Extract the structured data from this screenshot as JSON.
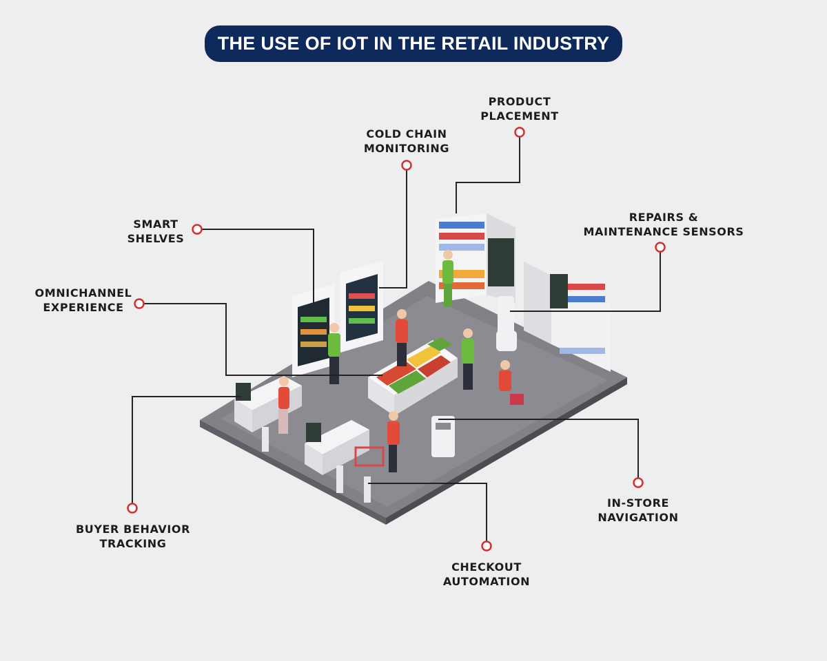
{
  "title": "THE USE OF IOT IN THE RETAIL INDUSTRY",
  "labels": {
    "product_placement": [
      "PRODUCT",
      "PLACEMENT"
    ],
    "cold_chain": [
      "COLD CHAIN",
      "MONITORING"
    ],
    "smart_shelves": [
      "SMART",
      "SHELVES"
    ],
    "repairs": [
      "REPAIRS &",
      "MAINTENANCE SENSORS"
    ],
    "omnichannel": [
      "OMNICHANNEL",
      "EXPERIENCE"
    ],
    "buyer_behavior": [
      "BUYER BEHAVIOR",
      "TRACKING"
    ],
    "in_store_navigation": [
      "IN-STORE",
      "NAVIGATION"
    ],
    "checkout": [
      "CHECKOUT",
      "AUTOMATION"
    ]
  },
  "colors": {
    "title_bg": "#0e2a5c",
    "title_text": "#ffffff",
    "marker": "#d32f2f",
    "leader_line": "#222222",
    "floor": "#7d7d82",
    "background": "#eeeeee"
  }
}
